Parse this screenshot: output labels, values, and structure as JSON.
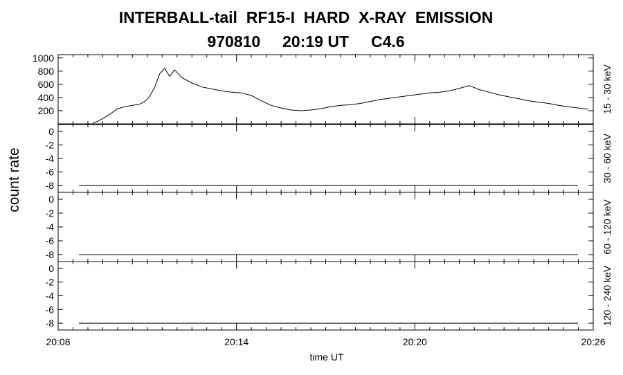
{
  "title": {
    "line1": "INTERBALL-tail  RF15-I  HARD  X-RAY  EMISSION",
    "line2": "970810     20:19 UT     C4.6"
  },
  "chart_data": {
    "type": "line",
    "ylabel": "count rate",
    "xlabel": "time UT",
    "xlim": [
      "20:08",
      "20:26"
    ],
    "x_ticks": [
      "20:08",
      "20:14",
      "20:20",
      "20:26"
    ],
    "panels": [
      {
        "band": "15 - 30 keV",
        "ylim": [
          0,
          1050
        ],
        "y_ticks": [
          1000,
          800,
          600,
          400,
          200
        ],
        "series": {
          "x": [
            "20:09:10",
            "20:09:20",
            "20:09:30",
            "20:09:45",
            "20:10:00",
            "20:10:15",
            "20:10:30",
            "20:10:45",
            "20:10:55",
            "20:11:05",
            "20:11:15",
            "20:11:25",
            "20:11:35",
            "20:11:45",
            "20:11:55",
            "20:12:10",
            "20:12:30",
            "20:12:50",
            "20:13:10",
            "20:13:30",
            "20:13:50",
            "20:14:10",
            "20:14:30",
            "20:14:50",
            "20:15:10",
            "20:15:30",
            "20:15:50",
            "20:16:10",
            "20:16:30",
            "20:16:50",
            "20:17:10",
            "20:17:30",
            "20:17:50",
            "20:18:10",
            "20:18:30",
            "20:18:50",
            "20:19:10",
            "20:19:30",
            "20:19:50",
            "20:20:10",
            "20:20:30",
            "20:20:50",
            "20:21:10",
            "20:21:30",
            "20:21:50",
            "20:22:10",
            "20:22:30",
            "20:22:50",
            "20:23:10",
            "20:23:30",
            "20:23:50",
            "20:24:10",
            "20:24:30",
            "20:24:50",
            "20:25:10",
            "20:25:30",
            "20:25:50"
          ],
          "values": [
            10,
            40,
            80,
            150,
            230,
            260,
            280,
            300,
            340,
            420,
            560,
            760,
            840,
            720,
            820,
            700,
            620,
            560,
            530,
            500,
            480,
            470,
            430,
            350,
            280,
            240,
            210,
            200,
            210,
            230,
            260,
            280,
            290,
            310,
            340,
            370,
            390,
            410,
            430,
            450,
            470,
            480,
            500,
            540,
            580,
            520,
            480,
            440,
            410,
            380,
            350,
            330,
            310,
            280,
            260,
            240,
            220
          ]
        }
      },
      {
        "band": "30 - 60 keV",
        "ylim": [
          -9,
          1
        ],
        "y_ticks": [
          -8,
          -6,
          -4,
          -2,
          0
        ],
        "constant": -8
      },
      {
        "band": "60 - 120 keV",
        "ylim": [
          -9,
          1
        ],
        "y_ticks": [
          -8,
          -6,
          -4,
          -2,
          0
        ],
        "constant": -8
      },
      {
        "band": "120 - 240 keV",
        "ylim": [
          -9,
          1
        ],
        "y_ticks": [
          -8,
          -6,
          -4,
          -2,
          0
        ],
        "constant": -8
      }
    ]
  }
}
